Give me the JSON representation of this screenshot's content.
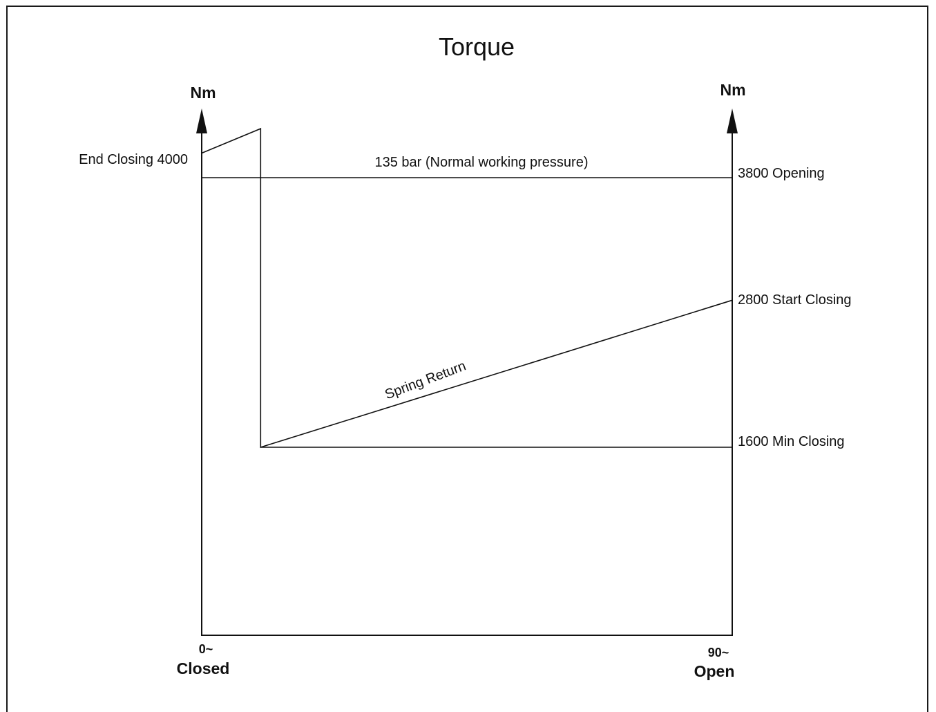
{
  "chart_data": {
    "type": "line",
    "title": "Torque",
    "y_axis_unit_left": "Nm",
    "y_axis_unit_right": "Nm",
    "x_axis": {
      "start": {
        "value": "0~",
        "label": "Closed"
      },
      "end": {
        "value": "90~",
        "label": "Open"
      }
    },
    "series": [
      {
        "name": "135 bar (Normal working pressure)",
        "points": [
          [
            0,
            3800
          ],
          [
            90,
            3800
          ]
        ]
      },
      {
        "name": "Spring Return",
        "points": [
          [
            90,
            2800
          ],
          [
            10,
            1600
          ],
          [
            10,
            4200
          ],
          [
            0,
            4000
          ]
        ]
      },
      {
        "name": "",
        "points": [
          [
            10,
            1600
          ],
          [
            90,
            1600
          ]
        ]
      }
    ],
    "annotations": {
      "end_closing": "End Closing 4000",
      "opening": "3800 Opening",
      "start_closing": "2800 Start Closing",
      "min_closing": "1600 Min Closing",
      "pressure_line": "135 bar (Normal working pressure)",
      "spring_return": "Spring Return"
    }
  }
}
